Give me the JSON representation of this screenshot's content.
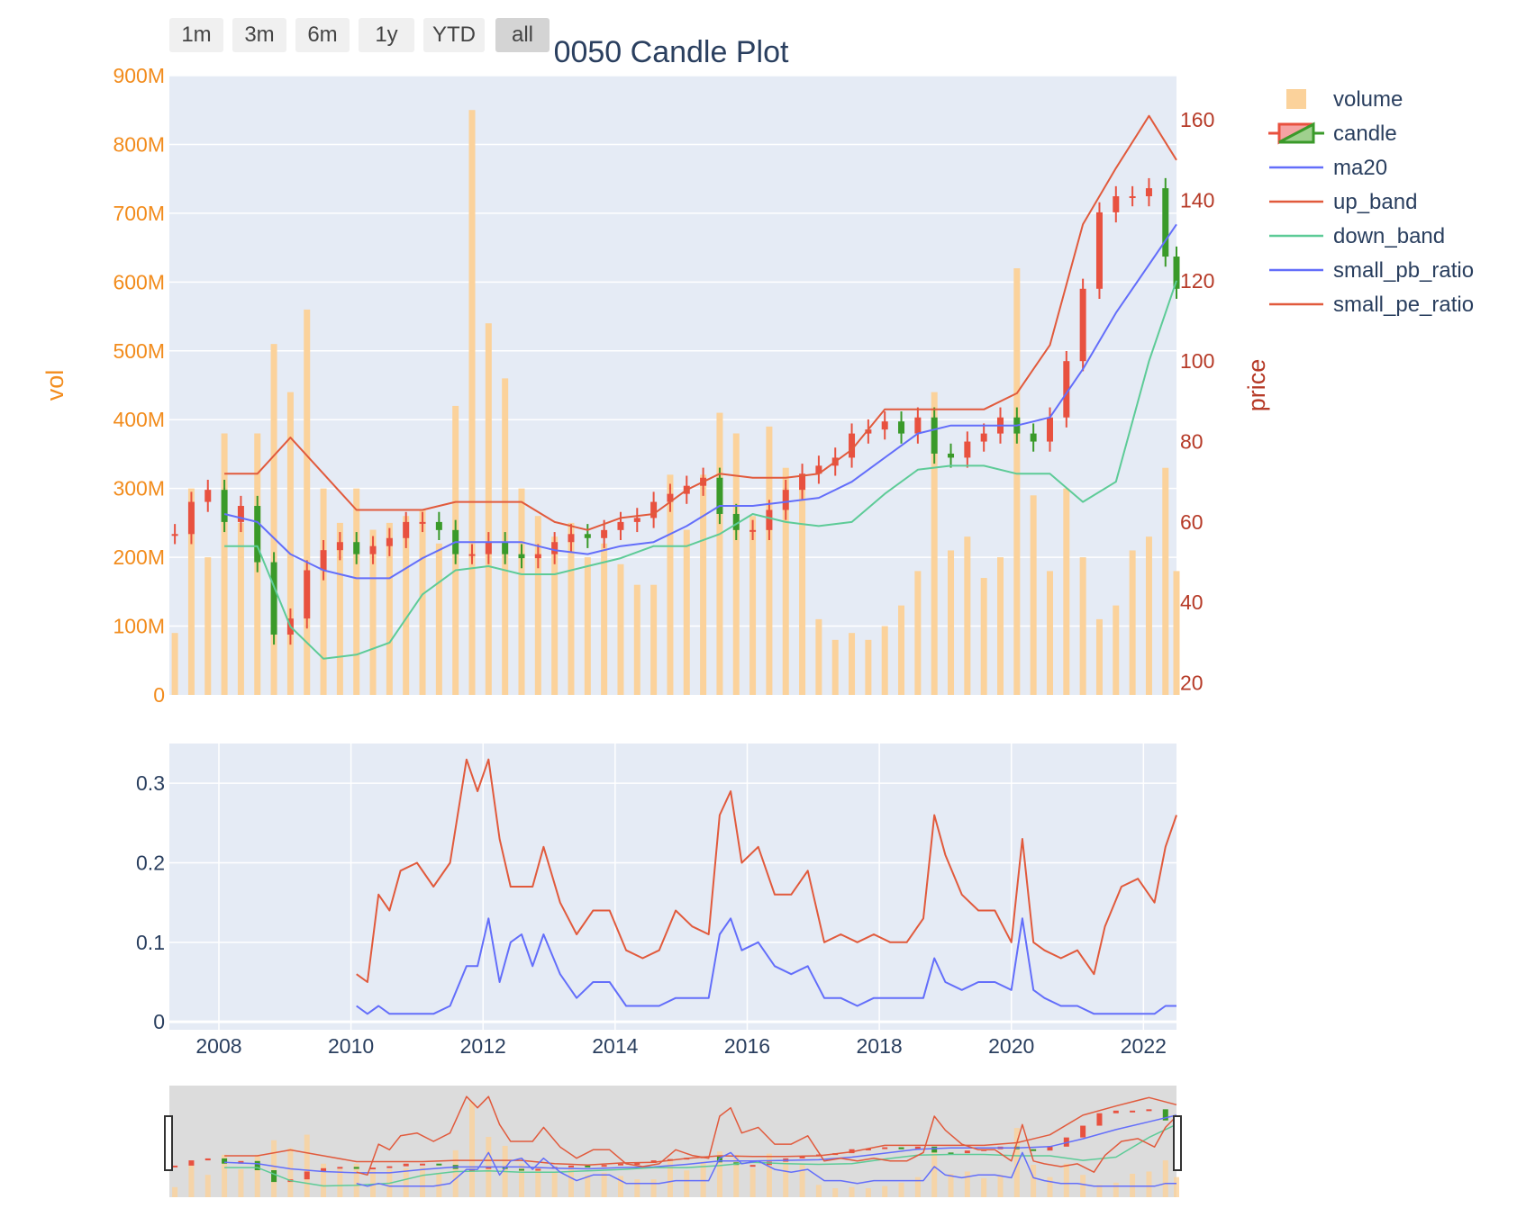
{
  "range_selector": {
    "buttons": [
      "1m",
      "3m",
      "6m",
      "1y",
      "YTD",
      "all"
    ],
    "active": "all"
  },
  "colors": {
    "volume": "#fbd29b",
    "candle_up": "#e8513f",
    "candle_down": "#3a9a2a",
    "ma20": "#636efa",
    "up_band": "#e15a3c",
    "down_band": "#5dcb97",
    "small_pb_ratio": "#636efa",
    "small_pe_ratio": "#e15a3c",
    "vol_axis": "#f28c1d",
    "price_axis": "#b63a27",
    "plot_bg": "#e5ebf5"
  },
  "chart_data": [
    {
      "type": "candlestick+bar+line",
      "title": "0050 Candle Plot",
      "ylabel_left": "vol",
      "ylabel_right": "price",
      "x_range": [
        "2007-04",
        "2022-07"
      ],
      "y_left_range": [
        0,
        900000000
      ],
      "y_right_range": [
        17,
        171
      ],
      "y_left_ticks": [
        "0",
        "100M",
        "200M",
        "300M",
        "400M",
        "500M",
        "600M",
        "700M",
        "800M",
        "900M"
      ],
      "y_right_ticks": [
        "20",
        "40",
        "60",
        "80",
        "100",
        "120",
        "140",
        "160"
      ],
      "legend_position": "top-right",
      "legend": [
        "volume",
        "candle",
        "ma20",
        "up_band",
        "down_band",
        "small_pb_ratio",
        "small_pe_ratio"
      ],
      "price_series": {
        "name": "candle",
        "x": [
          "2007-05",
          "2007-08",
          "2007-11",
          "2008-02",
          "2008-05",
          "2008-08",
          "2008-11",
          "2009-02",
          "2009-05",
          "2009-08",
          "2009-11",
          "2010-02",
          "2010-05",
          "2010-08",
          "2010-11",
          "2011-02",
          "2011-05",
          "2011-08",
          "2011-11",
          "2012-02",
          "2012-05",
          "2012-08",
          "2012-11",
          "2013-02",
          "2013-05",
          "2013-08",
          "2013-11",
          "2014-02",
          "2014-05",
          "2014-08",
          "2014-11",
          "2015-02",
          "2015-05",
          "2015-08",
          "2015-11",
          "2016-02",
          "2016-05",
          "2016-08",
          "2016-11",
          "2017-02",
          "2017-05",
          "2017-08",
          "2017-11",
          "2018-02",
          "2018-05",
          "2018-08",
          "2018-11",
          "2019-02",
          "2019-05",
          "2019-08",
          "2019-11",
          "2020-02",
          "2020-05",
          "2020-08",
          "2020-11",
          "2021-02",
          "2021-05",
          "2021-08",
          "2021-11",
          "2022-02",
          "2022-05",
          "2022-07"
        ],
        "close": [
          57,
          65,
          68,
          60,
          64,
          50,
          32,
          36,
          48,
          53,
          55,
          52,
          54,
          56,
          60,
          60,
          58,
          52,
          52,
          55,
          52,
          51,
          52,
          55,
          57,
          56,
          58,
          60,
          61,
          65,
          67,
          69,
          71,
          62,
          58,
          58,
          63,
          68,
          72,
          74,
          76,
          82,
          83,
          85,
          82,
          86,
          77,
          76,
          80,
          82,
          86,
          82,
          80,
          86,
          100,
          118,
          137,
          141,
          141,
          143,
          126,
          118
        ]
      },
      "ma20": {
        "x": [
          "2008-02",
          "2008-08",
          "2009-02",
          "2009-08",
          "2010-02",
          "2010-08",
          "2011-02",
          "2011-08",
          "2012-02",
          "2012-08",
          "2013-02",
          "2013-08",
          "2014-02",
          "2014-08",
          "2015-02",
          "2015-08",
          "2016-02",
          "2016-08",
          "2017-02",
          "2017-08",
          "2018-02",
          "2018-08",
          "2019-02",
          "2019-08",
          "2020-02",
          "2020-08",
          "2021-02",
          "2021-08",
          "2022-02",
          "2022-07"
        ],
        "values": [
          62,
          60,
          52,
          48,
          46,
          46,
          51,
          55,
          55,
          55,
          53,
          52,
          54,
          55,
          59,
          64,
          64,
          65,
          66,
          70,
          76,
          82,
          84,
          84,
          84,
          86,
          98,
          112,
          124,
          134
        ]
      },
      "up_band": {
        "x": [
          "2008-02",
          "2008-08",
          "2009-02",
          "2009-08",
          "2010-02",
          "2010-08",
          "2011-02",
          "2011-08",
          "2012-02",
          "2012-08",
          "2013-02",
          "2013-08",
          "2014-02",
          "2014-08",
          "2015-02",
          "2015-08",
          "2016-02",
          "2016-08",
          "2017-02",
          "2017-08",
          "2018-02",
          "2018-08",
          "2019-02",
          "2019-08",
          "2020-02",
          "2020-08",
          "2021-02",
          "2021-08",
          "2022-02",
          "2022-07"
        ],
        "values": [
          72,
          72,
          81,
          72,
          63,
          63,
          63,
          65,
          65,
          65,
          60,
          58,
          61,
          62,
          68,
          72,
          71,
          71,
          72,
          78,
          88,
          88,
          88,
          88,
          92,
          104,
          134,
          148,
          161,
          150
        ]
      },
      "down_band": {
        "x": [
          "2008-02",
          "2008-08",
          "2009-02",
          "2009-08",
          "2010-02",
          "2010-08",
          "2011-02",
          "2011-08",
          "2012-02",
          "2012-08",
          "2013-02",
          "2013-08",
          "2014-02",
          "2014-08",
          "2015-02",
          "2015-08",
          "2016-02",
          "2016-08",
          "2017-02",
          "2017-08",
          "2018-02",
          "2018-08",
          "2019-02",
          "2019-08",
          "2020-02",
          "2020-08",
          "2021-02",
          "2021-08",
          "2022-02",
          "2022-07"
        ],
        "values": [
          54,
          54,
          34,
          26,
          27,
          30,
          42,
          48,
          49,
          47,
          47,
          49,
          51,
          54,
          54,
          57,
          62,
          60,
          59,
          60,
          67,
          73,
          74,
          74,
          72,
          72,
          65,
          70,
          100,
          120
        ]
      },
      "volume": {
        "x": [
          "2007-05",
          "2007-08",
          "2007-11",
          "2008-02",
          "2008-05",
          "2008-08",
          "2008-11",
          "2009-02",
          "2009-05",
          "2009-08",
          "2009-11",
          "2010-02",
          "2010-05",
          "2010-08",
          "2010-11",
          "2011-02",
          "2011-05",
          "2011-08",
          "2011-11",
          "2012-02",
          "2012-05",
          "2012-08",
          "2012-11",
          "2013-02",
          "2013-05",
          "2013-08",
          "2013-11",
          "2014-02",
          "2014-05",
          "2014-08",
          "2014-11",
          "2015-02",
          "2015-05",
          "2015-08",
          "2015-11",
          "2016-02",
          "2016-05",
          "2016-08",
          "2016-11",
          "2017-02",
          "2017-05",
          "2017-08",
          "2017-11",
          "2018-02",
          "2018-05",
          "2018-08",
          "2018-11",
          "2019-02",
          "2019-05",
          "2019-08",
          "2019-11",
          "2020-02",
          "2020-05",
          "2020-08",
          "2020-11",
          "2021-02",
          "2021-05",
          "2021-08",
          "2021-11",
          "2022-02",
          "2022-05",
          "2022-07"
        ],
        "values": [
          90000000,
          300000000,
          200000000,
          380000000,
          250000000,
          380000000,
          510000000,
          440000000,
          560000000,
          300000000,
          250000000,
          300000000,
          240000000,
          250000000,
          260000000,
          270000000,
          220000000,
          420000000,
          850000000,
          540000000,
          460000000,
          300000000,
          260000000,
          230000000,
          250000000,
          200000000,
          220000000,
          190000000,
          160000000,
          160000000,
          320000000,
          240000000,
          320000000,
          410000000,
          380000000,
          260000000,
          390000000,
          330000000,
          300000000,
          110000000,
          80000000,
          90000000,
          80000000,
          100000000,
          130000000,
          180000000,
          440000000,
          210000000,
          230000000,
          170000000,
          200000000,
          620000000,
          290000000,
          180000000,
          300000000,
          200000000,
          110000000,
          130000000,
          210000000,
          230000000,
          330000000,
          180000000
        ]
      }
    },
    {
      "type": "line",
      "x_range": [
        "2007-04",
        "2022-07"
      ],
      "y_range": [
        -0.01,
        0.35
      ],
      "y_ticks": [
        "0",
        "0.1",
        "0.2",
        "0.3"
      ],
      "x_ticks": [
        "2008",
        "2010",
        "2012",
        "2014",
        "2016",
        "2018",
        "2020",
        "2022"
      ],
      "series": [
        {
          "name": "small_pe_ratio",
          "x": [
            "2010-02",
            "2010-04",
            "2010-06",
            "2010-08",
            "2010-10",
            "2011-01",
            "2011-04",
            "2011-07",
            "2011-10",
            "2011-12",
            "2012-02",
            "2012-04",
            "2012-06",
            "2012-08",
            "2012-10",
            "2012-12",
            "2013-03",
            "2013-06",
            "2013-09",
            "2013-12",
            "2014-03",
            "2014-06",
            "2014-09",
            "2014-12",
            "2015-03",
            "2015-06",
            "2015-08",
            "2015-10",
            "2015-12",
            "2016-03",
            "2016-06",
            "2016-09",
            "2016-12",
            "2017-03",
            "2017-06",
            "2017-09",
            "2017-12",
            "2018-03",
            "2018-06",
            "2018-09",
            "2018-11",
            "2019-01",
            "2019-04",
            "2019-07",
            "2019-10",
            "2020-01",
            "2020-03",
            "2020-05",
            "2020-07",
            "2020-10",
            "2021-01",
            "2021-04",
            "2021-06",
            "2021-09",
            "2021-12",
            "2022-03",
            "2022-05",
            "2022-07"
          ],
          "values": [
            0.06,
            0.05,
            0.16,
            0.14,
            0.19,
            0.2,
            0.17,
            0.2,
            0.33,
            0.29,
            0.33,
            0.23,
            0.17,
            0.17,
            0.17,
            0.22,
            0.15,
            0.11,
            0.14,
            0.14,
            0.09,
            0.08,
            0.09,
            0.14,
            0.12,
            0.11,
            0.26,
            0.29,
            0.2,
            0.22,
            0.16,
            0.16,
            0.19,
            0.1,
            0.11,
            0.1,
            0.11,
            0.1,
            0.1,
            0.13,
            0.26,
            0.21,
            0.16,
            0.14,
            0.14,
            0.1,
            0.23,
            0.1,
            0.09,
            0.08,
            0.09,
            0.06,
            0.12,
            0.17,
            0.18,
            0.15,
            0.22,
            0.26
          ]
        },
        {
          "name": "small_pb_ratio",
          "x": [
            "2010-02",
            "2010-04",
            "2010-06",
            "2010-08",
            "2010-10",
            "2011-01",
            "2011-04",
            "2011-07",
            "2011-10",
            "2011-12",
            "2012-02",
            "2012-04",
            "2012-06",
            "2012-08",
            "2012-10",
            "2012-12",
            "2013-03",
            "2013-06",
            "2013-09",
            "2013-12",
            "2014-03",
            "2014-06",
            "2014-09",
            "2014-12",
            "2015-03",
            "2015-06",
            "2015-08",
            "2015-10",
            "2015-12",
            "2016-03",
            "2016-06",
            "2016-09",
            "2016-12",
            "2017-03",
            "2017-06",
            "2017-09",
            "2017-12",
            "2018-03",
            "2018-06",
            "2018-09",
            "2018-11",
            "2019-01",
            "2019-04",
            "2019-07",
            "2019-10",
            "2020-01",
            "2020-03",
            "2020-05",
            "2020-07",
            "2020-10",
            "2021-01",
            "2021-04",
            "2021-06",
            "2021-09",
            "2021-12",
            "2022-03",
            "2022-05",
            "2022-07"
          ],
          "values": [
            0.02,
            0.01,
            0.02,
            0.01,
            0.01,
            0.01,
            0.01,
            0.02,
            0.07,
            0.07,
            0.13,
            0.05,
            0.1,
            0.11,
            0.07,
            0.11,
            0.06,
            0.03,
            0.05,
            0.05,
            0.02,
            0.02,
            0.02,
            0.03,
            0.03,
            0.03,
            0.11,
            0.13,
            0.09,
            0.1,
            0.07,
            0.06,
            0.07,
            0.03,
            0.03,
            0.02,
            0.03,
            0.03,
            0.03,
            0.03,
            0.08,
            0.05,
            0.04,
            0.05,
            0.05,
            0.04,
            0.13,
            0.04,
            0.03,
            0.02,
            0.02,
            0.01,
            0.01,
            0.01,
            0.01,
            0.01,
            0.02,
            0.02
          ]
        }
      ]
    }
  ]
}
